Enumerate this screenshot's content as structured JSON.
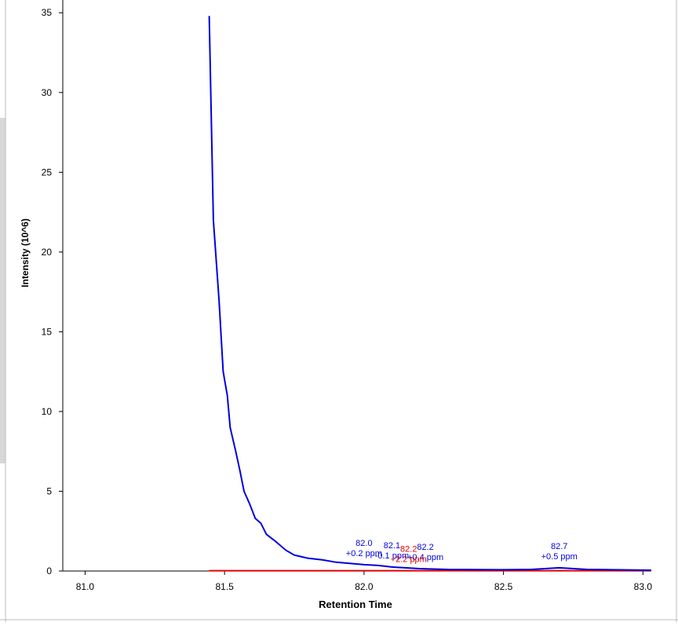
{
  "chart_data": {
    "type": "line",
    "xlabel": "Retention Time",
    "ylabel": "Intensity (10^6)",
    "xlim": [
      80.92,
      83.03
    ],
    "ylim": [
      0,
      35.8
    ],
    "xticks": [
      {
        "value": 81,
        "label": "81.0"
      },
      81.5,
      {
        "value": 82,
        "label": "82.0"
      },
      82.5,
      {
        "value": 83,
        "label": "83.0"
      }
    ],
    "yticks": [
      0,
      5,
      10,
      15,
      20,
      25,
      30,
      35
    ],
    "series": [
      {
        "color": "#0000e0",
        "x": [
          81.445,
          81.46,
          81.48,
          81.495,
          81.51,
          81.52,
          81.54,
          81.555,
          81.57,
          81.59,
          81.61,
          81.63,
          81.65,
          81.68,
          81.72,
          81.75,
          81.8,
          81.85,
          81.9,
          82.0,
          82.05,
          82.1,
          82.2,
          82.3,
          82.5,
          82.6,
          82.7,
          82.8,
          83.03
        ],
        "values": [
          34.8,
          22,
          17,
          12.5,
          11,
          9,
          7.5,
          6.3,
          5,
          4.2,
          3.3,
          3.0,
          2.3,
          1.9,
          1.3,
          1.0,
          0.8,
          0.7,
          0.55,
          0.4,
          0.35,
          0.25,
          0.15,
          0.1,
          0.08,
          0.1,
          0.2,
          0.1,
          0.05
        ]
      },
      {
        "color": "#e00000",
        "x": [
          81.445,
          82.0,
          82.5,
          83.03
        ],
        "values": [
          0.02,
          0.02,
          0.02,
          0.02
        ]
      }
    ],
    "annotations": [
      {
        "text": "82.0",
        "subtext": "+0.2 ppm",
        "x": 82.0,
        "y": 0.4,
        "color": "#0000e0"
      },
      {
        "text": "82.1",
        "subtext": "-0.1 ppm",
        "x": 82.1,
        "y": 0.25,
        "color": "#0000e0"
      },
      {
        "text": "82.2",
        "subtext": "+0.4 ppm",
        "x": 82.22,
        "y": 0.15,
        "color": "#0000e0"
      },
      {
        "text": "82.2",
        "subtext": "+2.2 ppm",
        "x": 82.16,
        "y": 0.02,
        "color": "#e00000"
      },
      {
        "text": "82.7",
        "subtext": "+0.5 ppm",
        "x": 82.7,
        "y": 0.2,
        "color": "#0000e0"
      }
    ]
  }
}
